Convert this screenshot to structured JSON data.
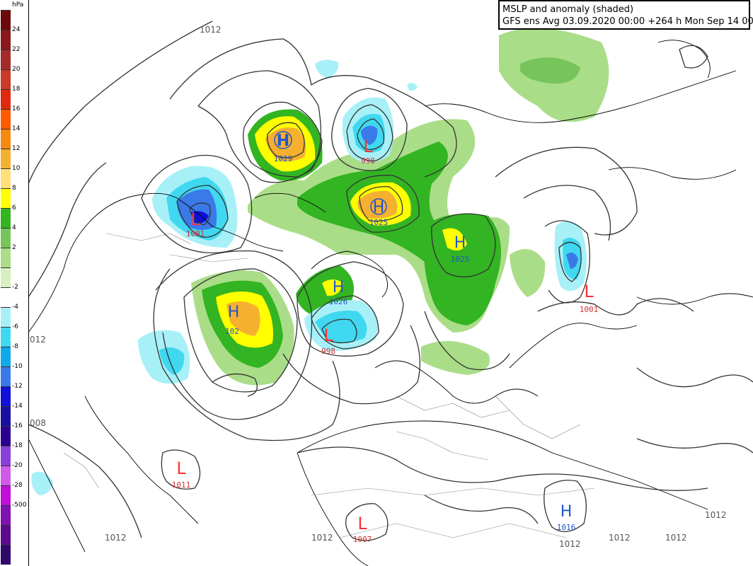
{
  "title": {
    "line1": "MSLP and anomaly (shaded)",
    "line2": "GFS ens Avg 03.09.2020 00:00 +264 h Mon Sep 14 00hrs"
  },
  "legend": {
    "unit": "hPa",
    "ticks": [
      "24",
      "22",
      "20",
      "18",
      "16",
      "14",
      "12",
      "10",
      "8",
      "6",
      "4",
      "2",
      "-2",
      "-4",
      "-6",
      "-8",
      "-10",
      "-12",
      "-14",
      "-16",
      "-18",
      "-20",
      "-28",
      "-500"
    ],
    "colors": [
      "#6b0a0a",
      "#8a1a1a",
      "#a52a2a",
      "#c83a2a",
      "#e02a10",
      "#ff5a00",
      "#f58a10",
      "#f5b030",
      "#ffe07a",
      "#ffff00",
      "#33b422",
      "#77c55a",
      "#aadd88",
      "#d8f0c0",
      "#ffffff",
      "#a8f0f8",
      "#40d8f0",
      "#10a8e8",
      "#3a7ae8",
      "#1010d8",
      "#1a10a0",
      "#2a0090",
      "#8a40d8",
      "#d05ae8",
      "#c010d8",
      "#8010b0",
      "#5a0a8a",
      "#30086a"
    ]
  },
  "centers": [
    {
      "type": "H",
      "value": "1029"
    },
    {
      "type": "L",
      "value": "998"
    },
    {
      "type": "L",
      "value": "1001"
    },
    {
      "type": "H",
      "value": "1025"
    },
    {
      "type": "H",
      "value": "1025"
    },
    {
      "type": "H",
      "value": "1026"
    },
    {
      "type": "H",
      "value": "102"
    },
    {
      "type": "L",
      "value": "998"
    },
    {
      "type": "L",
      "value": "1001"
    },
    {
      "type": "L",
      "value": "1011"
    },
    {
      "type": "L",
      "value": "1007"
    },
    {
      "type": "H",
      "value": "1016"
    }
  ],
  "isobar_labels": [
    "1012",
    "012",
    "008",
    "1012",
    "1012",
    "1012",
    "1012",
    "1012",
    "1012"
  ],
  "colors": {
    "high_label": "#2255cc",
    "low_label": "#ff3333",
    "isobar": "#333333",
    "border": "#666666"
  }
}
